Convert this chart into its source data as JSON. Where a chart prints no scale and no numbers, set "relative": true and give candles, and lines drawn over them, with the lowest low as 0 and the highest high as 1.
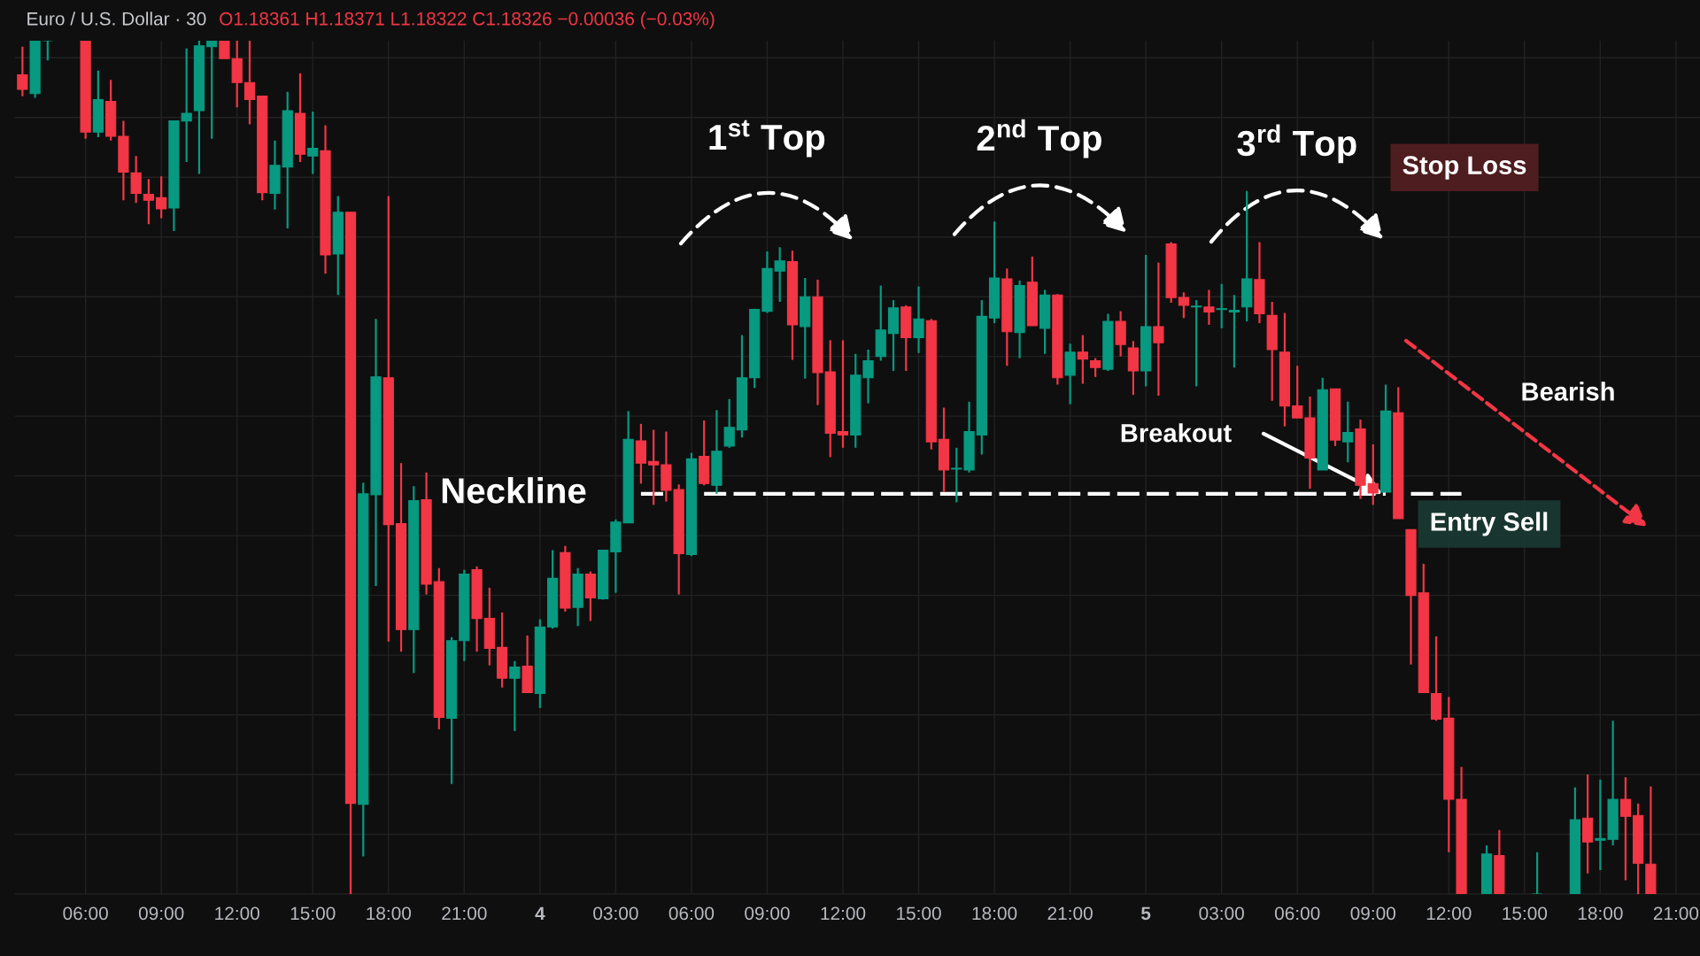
{
  "chart_data": {
    "type": "candlestick",
    "relative": true,
    "grid": true,
    "title": "Euro / U.S. Dollar · 30",
    "subtitle": "O1.18361 H1.18371 L1.18322 C1.18326 −0.00036 (−0.03%)",
    "categories": [
      null,
      null,
      null,
      null,
      null,
      "06:00",
      null,
      null,
      null,
      null,
      null,
      "09:00",
      null,
      null,
      null,
      null,
      null,
      "12:00",
      null,
      null,
      null,
      null,
      null,
      "15:00",
      null,
      null,
      null,
      null,
      null,
      "18:00",
      null,
      null,
      null,
      null,
      null,
      "21:00",
      null,
      null,
      null,
      null,
      null,
      "4",
      null,
      null,
      null,
      null,
      null,
      "03:00",
      null,
      null,
      null,
      null,
      null,
      "06:00",
      null,
      null,
      null,
      null,
      null,
      "09:00",
      null,
      null,
      null,
      null,
      null,
      "12:00",
      null,
      null,
      null,
      null,
      null,
      "15:00",
      null,
      null,
      null,
      null,
      null,
      "18:00",
      null,
      null,
      null,
      null,
      null,
      "21:00",
      null,
      null,
      null,
      null,
      null,
      "5",
      null,
      null,
      null,
      null,
      null,
      "03:00",
      null,
      null,
      null,
      null,
      null,
      "06:00",
      null,
      null,
      null,
      null,
      null,
      "09:00",
      null,
      null,
      null,
      null,
      null,
      "12:00",
      null,
      null,
      null,
      null,
      null,
      "15:00",
      null,
      null,
      null,
      null,
      null,
      "18:00",
      null,
      null,
      null,
      null,
      null,
      "21:00"
    ],
    "ohlc": [
      [
        0.96,
        0.993,
        0.935,
        0.943
      ],
      [
        0.938,
        1.0,
        0.933,
        1.0
      ],
      [
        1.0,
        1.0,
        0.977,
        1.0
      ],
      null,
      null,
      [
        1.0,
        1.0,
        0.885,
        0.893
      ],
      [
        0.893,
        0.965,
        0.887,
        0.931
      ],
      [
        0.929,
        0.954,
        0.883,
        0.888
      ],
      [
        0.888,
        0.906,
        0.813,
        0.846
      ],
      [
        0.845,
        0.865,
        0.81,
        0.821
      ],
      [
        0.82,
        0.838,
        0.785,
        0.813
      ],
      [
        0.816,
        0.841,
        0.792,
        0.803
      ],
      [
        0.804,
        0.906,
        0.777,
        0.906
      ],
      [
        0.906,
        0.991,
        0.858,
        0.915
      ],
      [
        0.918,
        1.0,
        0.844,
        0.994
      ],
      [
        0.993,
        1.0,
        0.885,
        1.0
      ],
      [
        1.0,
        1.0,
        0.979,
        0.979
      ],
      [
        0.979,
        1.0,
        0.922,
        0.951
      ],
      [
        0.951,
        1.0,
        0.902,
        0.931
      ],
      [
        0.935,
        0.935,
        0.813,
        0.822
      ],
      [
        0.821,
        0.883,
        0.802,
        0.854
      ],
      [
        0.852,
        0.94,
        0.78,
        0.918
      ],
      [
        0.915,
        0.962,
        0.858,
        0.867
      ],
      [
        0.865,
        0.917,
        0.844,
        0.874
      ],
      [
        0.871,
        0.901,
        0.727,
        0.749
      ],
      [
        0.75,
        0.818,
        0.702,
        0.799
      ],
      [
        0.799,
        0.799,
        0.0,
        0.106
      ],
      [
        0.105,
        0.482,
        0.044,
        0.469
      ],
      [
        0.468,
        0.674,
        0.361,
        0.606
      ],
      [
        0.605,
        0.818,
        0.296,
        0.433
      ],
      [
        0.434,
        0.505,
        0.284,
        0.31
      ],
      [
        0.31,
        0.478,
        0.259,
        0.461
      ],
      [
        0.462,
        0.494,
        0.351,
        0.363
      ],
      [
        0.366,
        0.382,
        0.193,
        0.207
      ],
      [
        0.206,
        0.301,
        0.129,
        0.297
      ],
      [
        0.297,
        0.38,
        0.273,
        0.375
      ],
      [
        0.38,
        0.384,
        0.284,
        0.323
      ],
      [
        0.323,
        0.359,
        0.268,
        0.288
      ],
      [
        0.289,
        0.33,
        0.242,
        0.253
      ],
      [
        0.253,
        0.273,
        0.191,
        0.266
      ],
      [
        0.267,
        0.303,
        0.236,
        0.236
      ],
      [
        0.235,
        0.322,
        0.218,
        0.313
      ],
      [
        0.313,
        0.403,
        0.311,
        0.37
      ],
      [
        0.4,
        0.408,
        0.331,
        0.335
      ],
      [
        0.336,
        0.382,
        0.314,
        0.375
      ],
      [
        0.375,
        0.378,
        0.32,
        0.347
      ],
      [
        0.346,
        0.403,
        0.345,
        0.403
      ],
      [
        0.401,
        0.439,
        0.353,
        0.436
      ],
      [
        0.435,
        0.566,
        0.435,
        0.533
      ],
      [
        0.531,
        0.551,
        0.481,
        0.505
      ],
      [
        0.507,
        0.544,
        0.456,
        0.503
      ],
      [
        0.503,
        0.542,
        0.46,
        0.473
      ],
      [
        0.474,
        0.48,
        0.351,
        0.399
      ],
      [
        0.398,
        0.517,
        0.396,
        0.51
      ],
      [
        0.513,
        0.555,
        0.479,
        0.481
      ],
      [
        0.479,
        0.567,
        0.469,
        0.519
      ],
      [
        0.525,
        0.58,
        0.523,
        0.547
      ],
      [
        0.544,
        0.655,
        0.535,
        0.605
      ],
      [
        0.605,
        0.686,
        0.593,
        0.685
      ],
      [
        0.683,
        0.753,
        0.681,
        0.733
      ],
      [
        0.73,
        0.758,
        0.694,
        0.742
      ],
      [
        0.741,
        0.754,
        0.626,
        0.667
      ],
      [
        0.665,
        0.722,
        0.604,
        0.7
      ],
      [
        0.7,
        0.72,
        0.573,
        0.611
      ],
      [
        0.612,
        0.649,
        0.512,
        0.54
      ],
      [
        0.542,
        0.649,
        0.523,
        0.538
      ],
      [
        0.538,
        0.633,
        0.523,
        0.608
      ],
      [
        0.605,
        0.638,
        0.575,
        0.625
      ],
      [
        0.63,
        0.713,
        0.625,
        0.661
      ],
      [
        0.657,
        0.696,
        0.613,
        0.687
      ],
      [
        0.688,
        0.69,
        0.613,
        0.652
      ],
      [
        0.652,
        0.712,
        0.634,
        0.674
      ],
      [
        0.672,
        0.674,
        0.521,
        0.53
      ],
      [
        0.533,
        0.57,
        0.471,
        0.497
      ],
      [
        0.498,
        0.523,
        0.459,
        0.499
      ],
      [
        0.497,
        0.577,
        0.494,
        0.542
      ],
      [
        0.538,
        0.696,
        0.515,
        0.677
      ],
      [
        0.675,
        0.788,
        0.669,
        0.722
      ],
      [
        0.721,
        0.733,
        0.619,
        0.659
      ],
      [
        0.658,
        0.719,
        0.628,
        0.713
      ],
      [
        0.717,
        0.747,
        0.666,
        0.666
      ],
      [
        0.663,
        0.708,
        0.633,
        0.702
      ],
      [
        0.702,
        0.703,
        0.597,
        0.605
      ],
      [
        0.608,
        0.645,
        0.574,
        0.635
      ],
      [
        0.635,
        0.655,
        0.598,
        0.627
      ],
      [
        0.625,
        0.628,
        0.606,
        0.617
      ],
      [
        0.615,
        0.68,
        0.613,
        0.671
      ],
      [
        0.671,
        0.683,
        0.63,
        0.644
      ],
      [
        0.64,
        0.648,
        0.585,
        0.613
      ],
      [
        0.613,
        0.749,
        0.595,
        0.665
      ],
      [
        0.665,
        0.74,
        0.584,
        0.646
      ],
      [
        0.762,
        0.764,
        0.693,
        0.699
      ],
      [
        0.699,
        0.705,
        0.675,
        0.69
      ],
      [
        0.688,
        0.696,
        0.595,
        0.689
      ],
      [
        0.688,
        0.708,
        0.667,
        0.682
      ],
      [
        0.685,
        0.715,
        0.663,
        0.686
      ],
      [
        0.682,
        0.702,
        0.617,
        0.684
      ],
      [
        0.688,
        0.824,
        0.671,
        0.721
      ],
      [
        0.72,
        0.764,
        0.669,
        0.68
      ],
      [
        0.678,
        0.694,
        0.578,
        0.638
      ],
      [
        0.635,
        0.681,
        0.548,
        0.572
      ],
      [
        0.572,
        0.619,
        0.558,
        0.558
      ],
      [
        0.558,
        0.583,
        0.475,
        0.511
      ],
      [
        0.497,
        0.605,
        0.497,
        0.591
      ],
      [
        0.592,
        0.592,
        0.525,
        0.532
      ],
      [
        0.53,
        0.577,
        0.506,
        0.541
      ],
      [
        0.545,
        0.556,
        0.463,
        0.479
      ],
      [
        0.481,
        0.527,
        0.456,
        0.47
      ],
      [
        0.471,
        0.597,
        0.471,
        0.566
      ],
      [
        0.564,
        0.594,
        0.44,
        0.44
      ],
      [
        0.427,
        0.427,
        0.269,
        0.35
      ],
      [
        0.353,
        0.387,
        0.236,
        0.236
      ],
      [
        0.235,
        0.302,
        0.203,
        0.205
      ],
      [
        0.206,
        0.231,
        0.049,
        0.111
      ],
      [
        0.111,
        0.149,
        0.0,
        0.0
      ],
      null,
      [
        0.0,
        0.057,
        0.0,
        0.047
      ],
      [
        0.045,
        0.075,
        0.0,
        0.0
      ],
      null,
      null,
      [
        0.0,
        0.049,
        0.0,
        0.0
      ],
      null,
      null,
      [
        0.0,
        0.125,
        0.0,
        0.087
      ],
      [
        0.089,
        0.14,
        0.024,
        0.061
      ],
      [
        0.063,
        0.134,
        0.028,
        0.065
      ],
      [
        0.064,
        0.203,
        0.057,
        0.111
      ],
      [
        0.111,
        0.137,
        0.016,
        0.091
      ],
      [
        0.092,
        0.106,
        0.0,
        0.036
      ],
      [
        0.035,
        0.126,
        0.0,
        0.0
      ],
      null,
      null
    ],
    "colors": [
      "#f23645",
      "#089981",
      "#089981",
      null,
      null,
      "#f23645",
      "#089981",
      "#f23645",
      "#f23645",
      "#f23645",
      "#f23645",
      "#f23645",
      "#089981",
      "#089981",
      "#089981",
      "#089981",
      "#f23645",
      "#f23645",
      "#f23645",
      "#f23645",
      "#089981",
      "#089981",
      "#f23645",
      "#089981",
      "#f23645",
      "#089981",
      "#f23645",
      "#089981",
      "#089981",
      "#f23645",
      "#f23645",
      "#089981",
      "#f23645",
      "#f23645",
      "#089981",
      "#089981",
      "#f23645",
      "#f23645",
      "#f23645",
      "#089981",
      "#f23645",
      "#089981",
      "#089981",
      "#f23645",
      "#089981",
      "#f23645",
      "#089981",
      "#089981",
      "#089981",
      "#f23645",
      "#f23645",
      "#f23645",
      "#f23645",
      "#089981",
      "#f23645",
      "#089981",
      "#089981",
      "#089981",
      "#089981",
      "#089981",
      "#089981",
      "#f23645",
      "#089981",
      "#f23645",
      "#f23645",
      "#f23645",
      "#089981",
      "#089981",
      "#089981",
      "#089981",
      "#f23645",
      "#089981",
      "#f23645",
      "#f23645",
      "#089981",
      "#089981",
      "#089981",
      "#089981",
      "#f23645",
      "#089981",
      "#f23645",
      "#089981",
      "#f23645",
      "#089981",
      "#f23645",
      "#f23645",
      "#089981",
      "#f23645",
      "#f23645",
      "#089981",
      "#f23645",
      "#f23645",
      "#f23645",
      "#089981",
      "#f23645",
      "#089981",
      "#089981",
      "#089981",
      "#f23645",
      "#f23645",
      "#f23645",
      "#f23645",
      "#f23645",
      "#089981",
      "#f23645",
      "#089981",
      "#f23645",
      "#f23645",
      "#089981",
      "#f23645",
      "#f23645",
      "#f23645",
      "#f23645",
      "#f23645",
      "#f23645",
      null,
      "#089981",
      "#f23645",
      null,
      null,
      "#089981",
      null,
      null,
      "#089981",
      "#f23645",
      "#089981",
      "#089981",
      "#f23645",
      "#f23645",
      "#f23645",
      null,
      null
    ],
    "series": [
      {
        "name": "Neckline",
        "type": "line",
        "color": "#ffffff",
        "line_style": "dashed",
        "values": [
          null,
          null,
          null,
          null,
          null,
          null,
          null,
          null,
          null,
          null,
          null,
          null,
          null,
          null,
          null,
          null,
          null,
          null,
          null,
          null,
          null,
          null,
          null,
          null,
          null,
          null,
          null,
          null,
          null,
          null,
          null,
          null,
          null,
          null,
          null,
          null,
          null,
          null,
          null,
          null,
          null,
          null,
          null,
          null,
          null,
          null,
          null,
          null,
          null,
          0.469,
          0.469,
          0.469,
          null,
          null,
          0.469,
          0.469,
          0.469,
          0.469,
          0.469,
          0.469,
          0.469,
          0.469,
          0.469,
          0.469,
          0.469,
          0.469,
          0.469,
          0.469,
          0.469,
          0.469,
          0.469,
          0.469,
          0.469,
          0.469,
          0.469,
          0.469,
          0.469,
          0.469,
          0.469,
          0.469,
          0.469,
          0.469,
          0.469,
          0.469,
          0.469,
          0.469,
          0.469,
          0.469,
          0.469,
          0.469,
          0.469,
          0.469,
          0.469,
          0.469,
          0.469,
          0.469,
          0.469,
          0.469,
          0.469,
          0.469,
          0.469,
          0.469,
          0.469,
          0.469,
          0.469,
          0.469,
          0.469,
          0.469,
          0.469,
          null,
          0.469,
          0.469,
          0.469,
          0.469,
          0.469,
          null,
          null,
          null,
          null,
          null,
          null,
          null,
          null,
          null,
          null,
          null,
          null,
          null,
          null,
          null,
          null,
          null
        ]
      }
    ],
    "annotations": [
      "1$^{st}$ Top",
      "2$^{nd}$ Top",
      "3$^{rd}$ Top",
      "Stop Loss",
      "Bearish",
      {
        "text": "Breakout",
        "y": 0.469
      },
      "Entry Sell"
    ]
  }
}
